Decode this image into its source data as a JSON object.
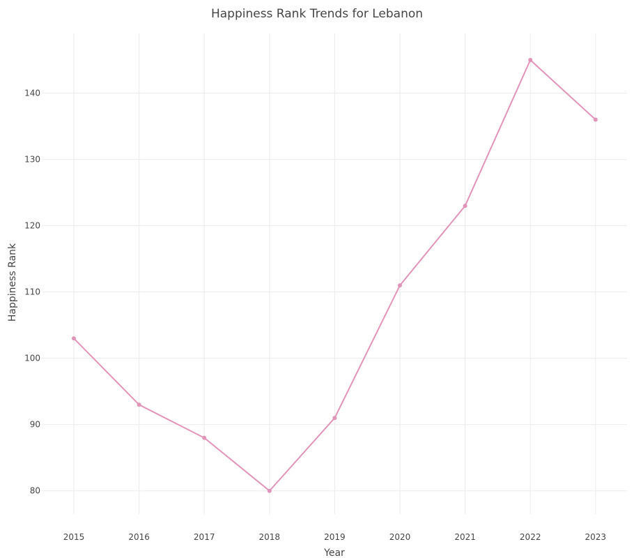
{
  "chart_data": {
    "type": "line",
    "title": "Happiness Rank Trends for Lebanon",
    "xlabel": "Year",
    "ylabel": "Happiness Rank",
    "x": [
      "2015",
      "2016",
      "2017",
      "2018",
      "2019",
      "2020",
      "2021",
      "2022",
      "2023"
    ],
    "series": [
      {
        "name": "Lebanon",
        "values": [
          103,
          93,
          88,
          80,
          91,
          111,
          123,
          145,
          136
        ]
      }
    ],
    "yticks": [
      80,
      90,
      100,
      110,
      120,
      130,
      140
    ],
    "ylim": [
      76.5,
      149
    ],
    "grid": true,
    "legend": "none",
    "colors": {
      "line": "#e094b8",
      "marker": "#e094b8"
    }
  }
}
